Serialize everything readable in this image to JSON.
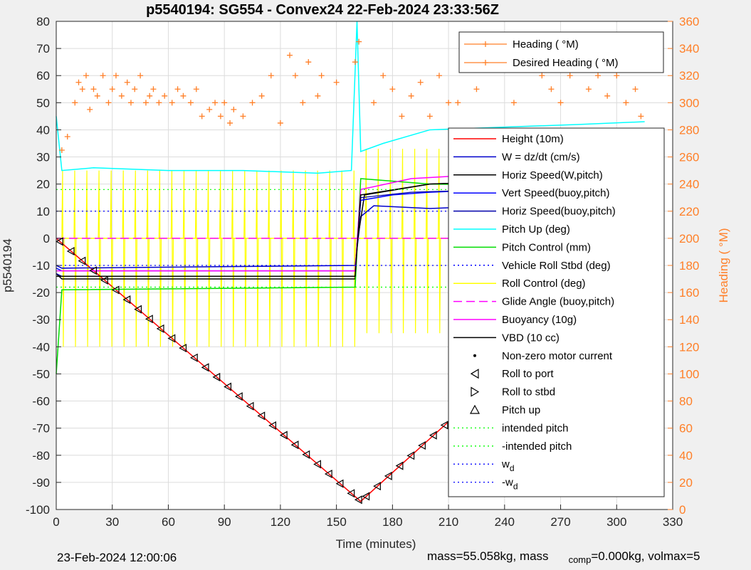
{
  "chart_data": {
    "type": "line",
    "title": "p5540194: SG554 - Convex24 22-Feb-2024 23:33:56Z",
    "xlabel": "Time (minutes)",
    "ylabel": "p5540194",
    "ylabel_right": "Heading (  °M)",
    "xlim": [
      0,
      330
    ],
    "ylim": [
      -100,
      80
    ],
    "ylim_right": [
      0,
      360
    ],
    "x_ticks": [
      0,
      30,
      60,
      90,
      120,
      150,
      180,
      210,
      240,
      270,
      300,
      330
    ],
    "y_ticks": [
      -100,
      -90,
      -80,
      -70,
      -60,
      -50,
      -40,
      -30,
      -20,
      -10,
      0,
      10,
      20,
      30,
      40,
      50,
      60,
      70,
      80
    ],
    "y_ticks_right": [
      0,
      20,
      40,
      60,
      80,
      100,
      120,
      140,
      160,
      180,
      200,
      220,
      240,
      260,
      280,
      300,
      320,
      340,
      360
    ],
    "grid": true,
    "colors": {
      "height": "#ff0000",
      "w": "#0000cc",
      "horiz_w": "#000000",
      "vert_buoy": "#0000ff",
      "horiz_buoy": "#0000aa",
      "pitch": "#00ffff",
      "pitch_control": "#00dd00",
      "roll": "#ffff00",
      "glide": "#ff00ff",
      "buoyancy": "#ff00ff",
      "vbd": "#000000",
      "heading": "#ff7f27",
      "intended": "#00ff00",
      "wd": "#0000ff"
    },
    "series": [
      {
        "name": "Height (10m)",
        "x": [
          0,
          163,
          315
        ],
        "y": [
          0,
          -97,
          -2
        ]
      },
      {
        "name": "W = dz/dt (cm/s)",
        "x": [
          0,
          3,
          160,
          163,
          170,
          200,
          240,
          280,
          315
        ],
        "y": [
          -10,
          -11,
          -10,
          8,
          12,
          11,
          12,
          12,
          12
        ]
      },
      {
        "name": "Horiz Speed(W,pitch)",
        "x": [
          0,
          3,
          160,
          161,
          165,
          200,
          240,
          315
        ],
        "y": [
          -13,
          -15,
          -15,
          -2,
          16,
          20,
          21,
          22
        ]
      },
      {
        "name": "Vert Speed(buoy,pitch)",
        "x": [
          0,
          3,
          160,
          163,
          180,
          200,
          240,
          315
        ],
        "y": [
          -11,
          -12,
          -12,
          14,
          16,
          17,
          18,
          19
        ]
      },
      {
        "name": "Horiz Speed(buoy,pitch)",
        "x": [
          0,
          3,
          160,
          163,
          190,
          240,
          315
        ],
        "y": [
          -13,
          -14,
          -14,
          15,
          17,
          18,
          18
        ]
      },
      {
        "name": "Pitch Up (deg)",
        "x": [
          0,
          3,
          20,
          60,
          100,
          140,
          158,
          161,
          163,
          175,
          200,
          240,
          280,
          315
        ],
        "y": [
          45,
          25,
          26,
          25,
          25,
          24,
          25,
          80,
          32,
          35,
          40,
          41,
          42,
          43
        ]
      },
      {
        "name": "Pitch Control (mm)",
        "x": [
          0,
          3,
          160,
          163,
          200,
          315
        ],
        "y": [
          -50,
          -19,
          -18,
          22,
          20,
          19
        ]
      },
      {
        "name": "Vehicle Roll Stbd (deg)",
        "x": [
          0,
          315
        ],
        "y": [
          0,
          0
        ]
      },
      {
        "name": "Roll Control (deg)",
        "x": [
          0,
          315
        ],
        "y": [
          0,
          0
        ]
      },
      {
        "name": "Glide Angle (buoy,pitch)",
        "x": [
          0,
          160,
          163,
          315
        ],
        "y": [
          0,
          0,
          0,
          0
        ]
      },
      {
        "name": "Buoyancy (10g)",
        "x": [
          0,
          3,
          160,
          163,
          190,
          240,
          315
        ],
        "y": [
          -12,
          -12,
          -12,
          18,
          22,
          24,
          25
        ]
      },
      {
        "name": "VBD (10 cc)",
        "x": [
          0,
          3,
          160,
          163,
          200,
          315
        ],
        "y": [
          -14,
          -14,
          -14,
          16,
          20,
          23
        ]
      },
      {
        "name": "intended pitch",
        "x": [
          0,
          315
        ],
        "y": [
          18,
          18
        ]
      },
      {
        "name": "-intended pitch",
        "x": [
          0,
          315
        ],
        "y": [
          -18,
          -18
        ]
      },
      {
        "name": "w_d",
        "x": [
          0,
          315
        ],
        "y": [
          10,
          10
        ]
      },
      {
        "name": "-w_d",
        "x": [
          0,
          315
        ],
        "y": [
          -10,
          -10
        ]
      }
    ],
    "heading_series": [
      {
        "name": "Heading (  °M)"
      },
      {
        "name": "Desired Heading (  °M)"
      }
    ],
    "heading_scatter": [
      [
        3,
        265
      ],
      [
        6,
        275
      ],
      [
        10,
        300
      ],
      [
        12,
        315
      ],
      [
        14,
        310
      ],
      [
        16,
        320
      ],
      [
        18,
        295
      ],
      [
        20,
        310
      ],
      [
        22,
        305
      ],
      [
        25,
        320
      ],
      [
        28,
        300
      ],
      [
        30,
        310
      ],
      [
        32,
        320
      ],
      [
        35,
        305
      ],
      [
        38,
        315
      ],
      [
        40,
        300
      ],
      [
        42,
        310
      ],
      [
        45,
        320
      ],
      [
        48,
        300
      ],
      [
        50,
        305
      ],
      [
        52,
        310
      ],
      [
        55,
        300
      ],
      [
        58,
        305
      ],
      [
        62,
        300
      ],
      [
        65,
        310
      ],
      [
        68,
        305
      ],
      [
        72,
        300
      ],
      [
        75,
        310
      ],
      [
        78,
        290
      ],
      [
        82,
        295
      ],
      [
        85,
        300
      ],
      [
        88,
        290
      ],
      [
        90,
        300
      ],
      [
        93,
        285
      ],
      [
        95,
        295
      ],
      [
        100,
        290
      ],
      [
        105,
        300
      ],
      [
        110,
        305
      ],
      [
        115,
        320
      ],
      [
        120,
        285
      ],
      [
        125,
        335
      ],
      [
        128,
        320
      ],
      [
        132,
        300
      ],
      [
        135,
        330
      ],
      [
        140,
        305
      ],
      [
        142,
        320
      ],
      [
        150,
        315
      ],
      [
        160,
        330
      ],
      [
        162,
        345
      ],
      [
        170,
        300
      ],
      [
        175,
        320
      ],
      [
        180,
        310
      ],
      [
        185,
        290
      ],
      [
        190,
        305
      ],
      [
        195,
        315
      ],
      [
        200,
        290
      ],
      [
        205,
        320
      ],
      [
        210,
        300
      ],
      [
        215,
        300
      ],
      [
        220,
        330
      ],
      [
        225,
        310
      ],
      [
        228,
        325
      ],
      [
        230,
        345
      ],
      [
        235,
        340
      ],
      [
        240,
        350
      ],
      [
        245,
        300
      ],
      [
        250,
        330
      ],
      [
        255,
        350
      ],
      [
        260,
        320
      ],
      [
        265,
        310
      ],
      [
        270,
        300
      ],
      [
        275,
        320
      ],
      [
        280,
        330
      ],
      [
        285,
        310
      ],
      [
        290,
        320
      ],
      [
        295,
        305
      ],
      [
        300,
        320
      ],
      [
        305,
        300
      ],
      [
        310,
        310
      ],
      [
        313,
        290
      ]
    ],
    "motor_markers": {
      "roll_port_x": [
        2,
        8,
        14,
        20,
        26,
        32,
        38,
        44,
        50,
        56,
        62,
        68,
        74,
        80,
        86,
        92,
        98,
        104,
        110,
        116,
        122,
        128,
        134,
        140,
        146,
        152,
        158,
        162,
        166,
        172,
        178,
        184,
        190,
        196,
        202,
        208,
        214,
        220,
        226,
        232,
        238,
        244,
        250,
        256,
        262,
        268,
        274,
        280,
        286,
        292,
        298,
        304,
        310
      ]
    },
    "legend1": [
      "Heading (  °M)",
      "Desired Heading (  °M)"
    ],
    "legend2": [
      "Height (10m)",
      "W = dz/dt (cm/s)",
      "Horiz Speed(W,pitch)",
      "Vert Speed(buoy,pitch)",
      "Horiz Speed(buoy,pitch)",
      "Pitch Up (deg)",
      "Pitch Control (mm)",
      "Vehicle Roll Stbd (deg)",
      "Roll Control (deg)",
      "Glide Angle (buoy,pitch)",
      "Buoyancy (10g)",
      "VBD (10 cc)",
      "Non-zero motor current",
      "Roll to port",
      "Roll to stbd",
      "Pitch up",
      "intended pitch",
      "-intended pitch",
      "w",
      "-w"
    ],
    "legend_subscript": "d",
    "legend_placement": [
      "top-right",
      "right"
    ]
  },
  "footer": {
    "date": "23-Feb-2024 12:00:06",
    "mass": "mass=55.058kg, mass",
    "comp_sub": "comp",
    "mass2": "=0.000kg, volmax=5"
  }
}
